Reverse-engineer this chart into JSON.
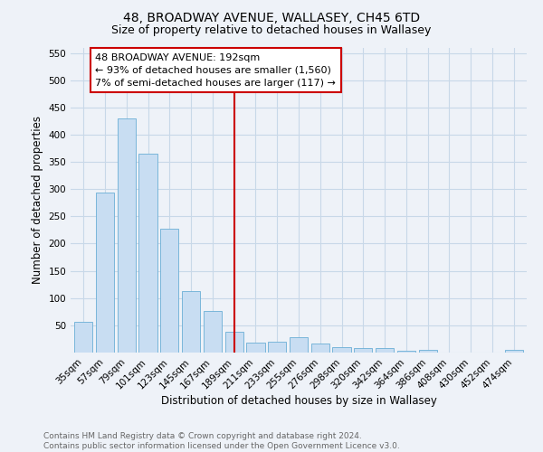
{
  "title": "48, BROADWAY AVENUE, WALLASEY, CH45 6TD",
  "subtitle": "Size of property relative to detached houses in Wallasey",
  "xlabel": "Distribution of detached houses by size in Wallasey",
  "ylabel": "Number of detached properties",
  "categories": [
    "35sqm",
    "57sqm",
    "79sqm",
    "101sqm",
    "123sqm",
    "145sqm",
    "167sqm",
    "189sqm",
    "211sqm",
    "233sqm",
    "255sqm",
    "276sqm",
    "298sqm",
    "320sqm",
    "342sqm",
    "364sqm",
    "386sqm",
    "408sqm",
    "430sqm",
    "452sqm",
    "474sqm"
  ],
  "values": [
    57,
    293,
    430,
    365,
    228,
    113,
    76,
    38,
    18,
    20,
    29,
    17,
    10,
    9,
    8,
    4,
    5,
    0,
    0,
    0,
    5
  ],
  "bar_color": "#c8ddf2",
  "bar_edge_color": "#6aaed6",
  "grid_color": "#c8d8e8",
  "background_color": "#eef2f8",
  "vline_x_index": 7,
  "vline_color": "#cc0000",
  "annotation_text": "48 BROADWAY AVENUE: 192sqm\n← 93% of detached houses are smaller (1,560)\n7% of semi-detached houses are larger (117) →",
  "annotation_box_color": "#ffffff",
  "annotation_box_edge_color": "#cc0000",
  "ylim": [
    0,
    560
  ],
  "yticks": [
    0,
    50,
    100,
    150,
    200,
    250,
    300,
    350,
    400,
    450,
    500,
    550
  ],
  "footnote": "Contains HM Land Registry data © Crown copyright and database right 2024.\nContains public sector information licensed under the Open Government Licence v3.0.",
  "title_fontsize": 10,
  "subtitle_fontsize": 9,
  "axis_label_fontsize": 8.5,
  "tick_fontsize": 7.5,
  "annotation_fontsize": 8,
  "footnote_fontsize": 6.5
}
